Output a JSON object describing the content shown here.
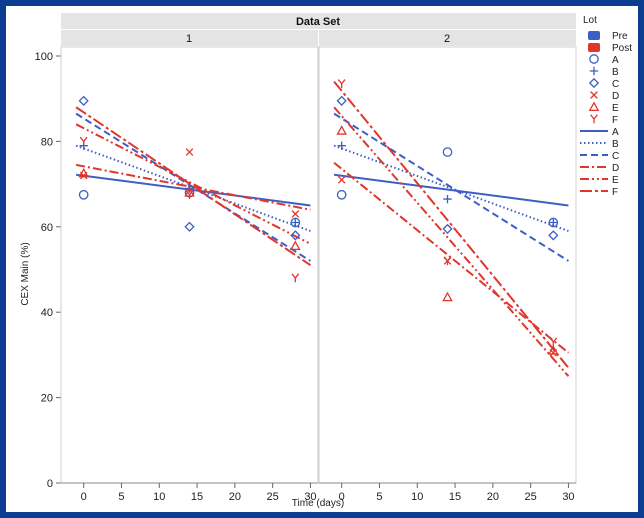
{
  "chart_data": {
    "type": "scatter",
    "header_title": "Data Set",
    "panels": [
      "1",
      "2"
    ],
    "ylabel": "CEX Main (%)",
    "xlabel": "Time (days)",
    "ylim": [
      0,
      100
    ],
    "xlim": [
      -3,
      31
    ],
    "yticks": [
      0,
      20,
      40,
      60,
      80,
      100
    ],
    "xticks": [
      0,
      5,
      10,
      15,
      20,
      25,
      30
    ],
    "legend_title": "Lot",
    "groups": [
      {
        "name": "Pre",
        "color": "#3b5fc4"
      },
      {
        "name": "Post",
        "color": "#e0362c"
      }
    ],
    "lots": [
      {
        "name": "A",
        "group": "Pre",
        "marker": "circle",
        "line": "solid"
      },
      {
        "name": "B",
        "group": "Pre",
        "marker": "plus",
        "line": "dotted"
      },
      {
        "name": "C",
        "group": "Pre",
        "marker": "diamond",
        "line": "dashed"
      },
      {
        "name": "D",
        "group": "Post",
        "marker": "x",
        "line": "dashdot"
      },
      {
        "name": "E",
        "group": "Post",
        "marker": "triangle",
        "line": "dashdotdot"
      },
      {
        "name": "F",
        "group": "Post",
        "marker": "y",
        "line": "longdashdot"
      }
    ],
    "points": [
      [
        {
          "lot": "A",
          "data": [
            [
              0,
              67.5
            ],
            [
              14,
              68
            ],
            [
              28,
              61
            ]
          ]
        },
        {
          "lot": "B",
          "data": [
            [
              0,
              79
            ],
            [
              14,
              69
            ],
            [
              28,
              61
            ]
          ]
        },
        {
          "lot": "C",
          "data": [
            [
              0,
              89.5
            ],
            [
              14,
              60
            ],
            [
              28,
              58
            ]
          ]
        },
        {
          "lot": "D",
          "data": [
            [
              0,
              72
            ],
            [
              14,
              77.5
            ],
            [
              28,
              63
            ]
          ]
        },
        {
          "lot": "E",
          "data": [
            [
              0,
              72.5
            ],
            [
              14,
              68
            ],
            [
              28,
              55.5
            ]
          ]
        },
        {
          "lot": "F",
          "data": [
            [
              0,
              80
            ],
            [
              14,
              67.5
            ],
            [
              28,
              48
            ]
          ]
        }
      ],
      [
        {
          "lot": "A",
          "data": [
            [
              0,
              67.5
            ],
            [
              14,
              77.5
            ],
            [
              28,
              61
            ]
          ]
        },
        {
          "lot": "B",
          "data": [
            [
              0,
              79
            ],
            [
              14,
              66.5
            ],
            [
              28,
              61
            ]
          ]
        },
        {
          "lot": "C",
          "data": [
            [
              0,
              89.5
            ],
            [
              14,
              59.5
            ],
            [
              28,
              58
            ]
          ]
        },
        {
          "lot": "D",
          "data": [
            [
              0,
              71
            ],
            [
              14,
              52
            ],
            [
              28,
              30.5
            ]
          ]
        },
        {
          "lot": "E",
          "data": [
            [
              0,
              82.5
            ],
            [
              14,
              43.5
            ],
            [
              28,
              31
            ]
          ]
        },
        {
          "lot": "F",
          "data": [
            [
              0,
              93.5
            ],
            [
              14,
              52
            ],
            [
              28,
              33
            ]
          ]
        }
      ]
    ],
    "fits": [
      [
        {
          "lot": "A",
          "from": [
            -1,
            72.2
          ],
          "to": [
            30,
            65
          ]
        },
        {
          "lot": "B",
          "from": [
            -1,
            79
          ],
          "to": [
            30,
            59
          ]
        },
        {
          "lot": "C",
          "from": [
            -1,
            86.5
          ],
          "to": [
            30,
            52
          ]
        },
        {
          "lot": "D",
          "from": [
            -1,
            74.5
          ],
          "to": [
            30,
            64
          ]
        },
        {
          "lot": "E",
          "from": [
            -1,
            84
          ],
          "to": [
            30,
            56
          ]
        },
        {
          "lot": "F",
          "from": [
            -1,
            88
          ],
          "to": [
            30,
            51
          ]
        }
      ],
      [
        {
          "lot": "A",
          "from": [
            -1,
            72.2
          ],
          "to": [
            30,
            65
          ]
        },
        {
          "lot": "B",
          "from": [
            -1,
            79
          ],
          "to": [
            30,
            59
          ]
        },
        {
          "lot": "C",
          "from": [
            -1,
            86.5
          ],
          "to": [
            30,
            52
          ]
        },
        {
          "lot": "D",
          "from": [
            -1,
            75
          ],
          "to": [
            30,
            30.5
          ]
        },
        {
          "lot": "E",
          "from": [
            -1,
            88
          ],
          "to": [
            30,
            25
          ]
        },
        {
          "lot": "F",
          "from": [
            -1,
            94
          ],
          "to": [
            30,
            27
          ]
        }
      ]
    ]
  }
}
